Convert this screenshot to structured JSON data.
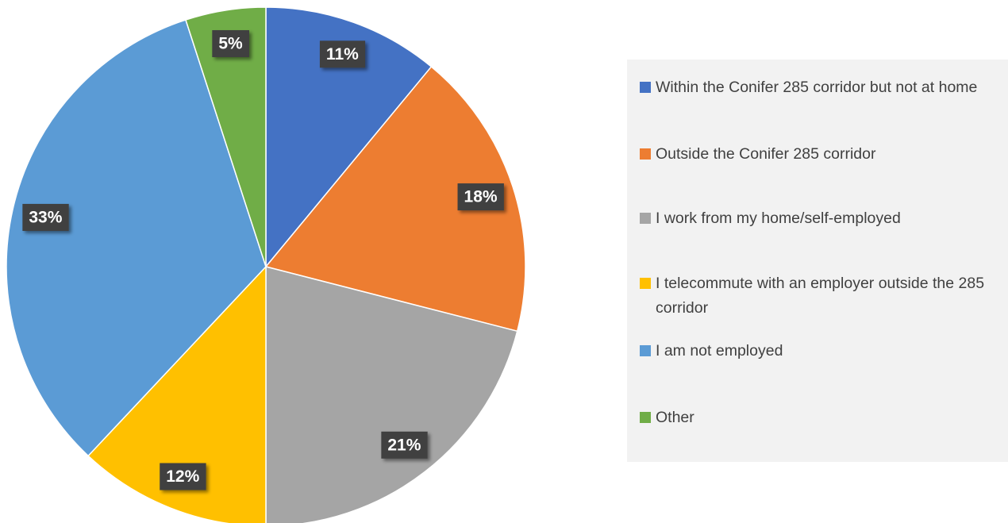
{
  "chart_data": {
    "type": "pie",
    "categories": [
      "Within the Conifer 285 corridor but not at home",
      "Outside the Conifer 285 corridor",
      "I work from my home/self-employed",
      "I telecommute with an employer outside the 285 corridor",
      "I am not employed",
      "Other"
    ],
    "values": [
      11,
      18,
      21,
      12,
      33,
      5
    ],
    "value_labels": [
      "11%",
      "18%",
      "21%",
      "12%",
      "33%",
      "5%"
    ],
    "colors": [
      "#4472c4",
      "#ed7d31",
      "#a5a5a5",
      "#ffc000",
      "#5b9bd5",
      "#70ad47"
    ],
    "legend": "right"
  }
}
